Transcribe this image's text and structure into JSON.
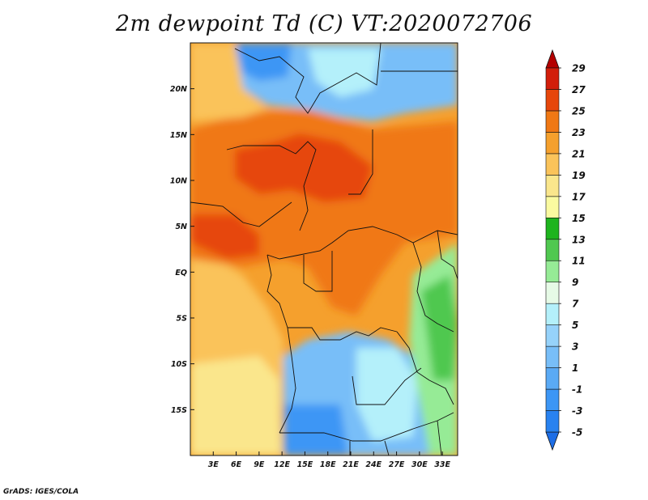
{
  "title": "2m dewpoint Td (C) VT:2020072706",
  "credit": "GrADS: IGES/COLA",
  "chart_data": {
    "type": "heatmap",
    "title": "2m dewpoint Td (C) VT:2020072706",
    "variable": "2m dewpoint",
    "units": "C",
    "valid_time": "2020072706",
    "xlim": [
      0,
      35
    ],
    "ylim": [
      -20,
      25
    ],
    "lon_ticks": [
      3,
      6,
      9,
      12,
      15,
      18,
      21,
      24,
      27,
      30,
      33
    ],
    "lon_tick_labels": [
      "3E",
      "6E",
      "9E",
      "12E",
      "15E",
      "18E",
      "21E",
      "24E",
      "27E",
      "30E",
      "33E"
    ],
    "lat_ticks": [
      20,
      15,
      10,
      5,
      0,
      -5,
      -10,
      -15
    ],
    "lat_tick_labels": [
      "20N",
      "15N",
      "10N",
      "5N",
      "EQ",
      "5S",
      "10S",
      "15S"
    ],
    "colorbar": {
      "levels": [
        -5,
        -3,
        -1,
        1,
        3,
        5,
        7,
        9,
        11,
        13,
        15,
        17,
        19,
        21,
        23,
        25,
        27,
        29
      ],
      "labels": [
        "-5",
        "-3",
        "-1",
        "1",
        "3",
        "5",
        "7",
        "9",
        "11",
        "13",
        "15",
        "17",
        "19",
        "21",
        "23",
        "25",
        "27",
        "29"
      ],
      "colors": [
        "#1e6ee6",
        "#2882f0",
        "#3c96f5",
        "#5aaaf5",
        "#78bef8",
        "#96d2fa",
        "#b4f0fa",
        "#e6fae6",
        "#96eb96",
        "#50c850",
        "#1eb41e",
        "#fafaa0",
        "#fae68c",
        "#fac35a",
        "#f5a02d",
        "#f07814",
        "#e6460a",
        "#d21e0a",
        "#b40000"
      ]
    }
  }
}
